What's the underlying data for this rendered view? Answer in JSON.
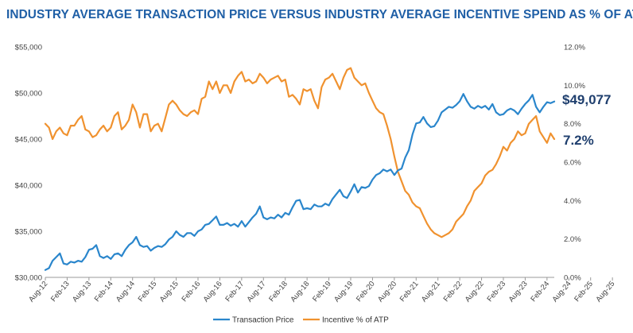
{
  "colors": {
    "title": "#1f5fa6",
    "price": "#2a86cc",
    "incentive": "#f0922f",
    "callout": "#1f3f6e",
    "axis": "#999999"
  },
  "chart_data": {
    "type": "line",
    "title": "INDUSTRY AVERAGE TRANSACTION PRICE VERSUS INDUSTRY AVERAGE INCENTIVE SPEND AS % OF ATP",
    "x_tick_labels": [
      "Aug-12",
      "Feb-13",
      "Aug-13",
      "Feb-14",
      "Aug-14",
      "Feb-15",
      "Aug-15",
      "Feb-16",
      "Aug-16",
      "Feb-17",
      "Aug-17",
      "Feb-18",
      "Aug-18",
      "Feb-19",
      "Aug-19",
      "Feb-20",
      "Aug-20",
      "Feb-21",
      "Aug-21",
      "Feb-22",
      "Aug-22",
      "Feb-23",
      "Aug-23",
      "Feb-24",
      "Aug-24",
      "Feb-25",
      "Aug-25"
    ],
    "y_left": {
      "min": 30000,
      "max": 55000,
      "step": 5000,
      "tick_labels": [
        "$30,000",
        "$35,000",
        "$40,000",
        "$45,000",
        "$50,000",
        "$55,000"
      ]
    },
    "y_right": {
      "min": 0,
      "max": 12,
      "step": 2,
      "tick_labels": [
        "0.0%",
        "2.0%",
        "4.0%",
        "6.0%",
        "8.0%",
        "10.0%",
        "12.0%"
      ]
    },
    "legend": [
      "Transaction Price",
      "Incentive % of ATP"
    ],
    "legend_position": "bottom-center",
    "callouts": {
      "price": "$49,077",
      "incentive": "7.2%"
    },
    "series": [
      {
        "name": "Transaction Price",
        "axis": "left",
        "values": [
          30800,
          31000,
          31800,
          32200,
          32600,
          31500,
          31400,
          31700,
          31600,
          31800,
          31700,
          32200,
          33000,
          33100,
          33500,
          32300,
          32100,
          32300,
          32000,
          32500,
          32600,
          32300,
          33000,
          33500,
          33800,
          34400,
          33500,
          33300,
          33400,
          32900,
          33200,
          33400,
          33300,
          33600,
          34100,
          34400,
          35000,
          34600,
          34400,
          34800,
          34800,
          34500,
          35000,
          35200,
          35700,
          35800,
          36200,
          36600,
          35700,
          35700,
          35900,
          35600,
          35800,
          35500,
          36100,
          35500,
          36000,
          36500,
          36900,
          37700,
          36500,
          36300,
          36500,
          36400,
          36800,
          36500,
          37000,
          36800,
          37600,
          38300,
          38400,
          37400,
          37500,
          37400,
          37900,
          37700,
          37700,
          38000,
          37800,
          38500,
          39000,
          39500,
          38800,
          38600,
          39300,
          40100,
          39200,
          39800,
          39700,
          39900,
          40600,
          41100,
          41300,
          41700,
          41500,
          41700,
          41100,
          41600,
          41800,
          43000,
          43800,
          45500,
          46700,
          46800,
          47400,
          46700,
          46300,
          46400,
          47000,
          47900,
          48200,
          48500,
          48400,
          48700,
          49100,
          49900,
          49100,
          48500,
          48300,
          48600,
          48400,
          48600,
          48200,
          48800,
          47900,
          47600,
          47700,
          48100,
          48300,
          48100,
          47700,
          48300,
          48800,
          49200,
          49800,
          48500,
          47900,
          48500,
          49000,
          48900,
          49077
        ]
      },
      {
        "name": "Incentive % of ATP",
        "axis": "right",
        "values": [
          8.0,
          7.8,
          7.2,
          7.6,
          7.8,
          7.5,
          7.4,
          7.9,
          7.9,
          8.2,
          8.4,
          7.7,
          7.6,
          7.3,
          7.4,
          7.7,
          7.9,
          7.6,
          7.8,
          8.4,
          8.6,
          7.7,
          7.9,
          8.2,
          9.0,
          8.6,
          7.8,
          8.5,
          8.5,
          7.6,
          7.9,
          8.0,
          7.6,
          8.3,
          9.0,
          9.2,
          9.0,
          8.7,
          8.5,
          8.4,
          8.6,
          8.7,
          8.5,
          9.3,
          9.4,
          10.2,
          9.8,
          10.2,
          9.6,
          10.0,
          10.0,
          9.6,
          10.2,
          10.5,
          10.7,
          10.2,
          10.3,
          10.1,
          10.2,
          10.6,
          10.4,
          10.1,
          10.3,
          10.4,
          10.5,
          10.2,
          10.3,
          9.4,
          9.5,
          9.3,
          9.0,
          9.8,
          9.7,
          9.8,
          9.2,
          8.8,
          9.9,
          10.3,
          10.4,
          10.6,
          10.2,
          9.8,
          10.4,
          10.8,
          10.9,
          10.4,
          10.2,
          10.0,
          10.1,
          9.6,
          9.2,
          8.8,
          8.6,
          8.5,
          7.9,
          7.2,
          6.3,
          5.5,
          5.0,
          4.5,
          4.3,
          3.9,
          3.7,
          3.6,
          3.2,
          2.8,
          2.5,
          2.3,
          2.2,
          2.1,
          2.2,
          2.3,
          2.5,
          2.9,
          3.1,
          3.3,
          3.7,
          4.0,
          4.5,
          4.7,
          4.9,
          5.3,
          5.5,
          5.6,
          5.9,
          6.3,
          6.8,
          6.6,
          7.0,
          7.2,
          7.6,
          7.4,
          7.5,
          8.0,
          8.2,
          8.4,
          7.6,
          7.3,
          7.0,
          7.5,
          7.2
        ]
      }
    ]
  }
}
